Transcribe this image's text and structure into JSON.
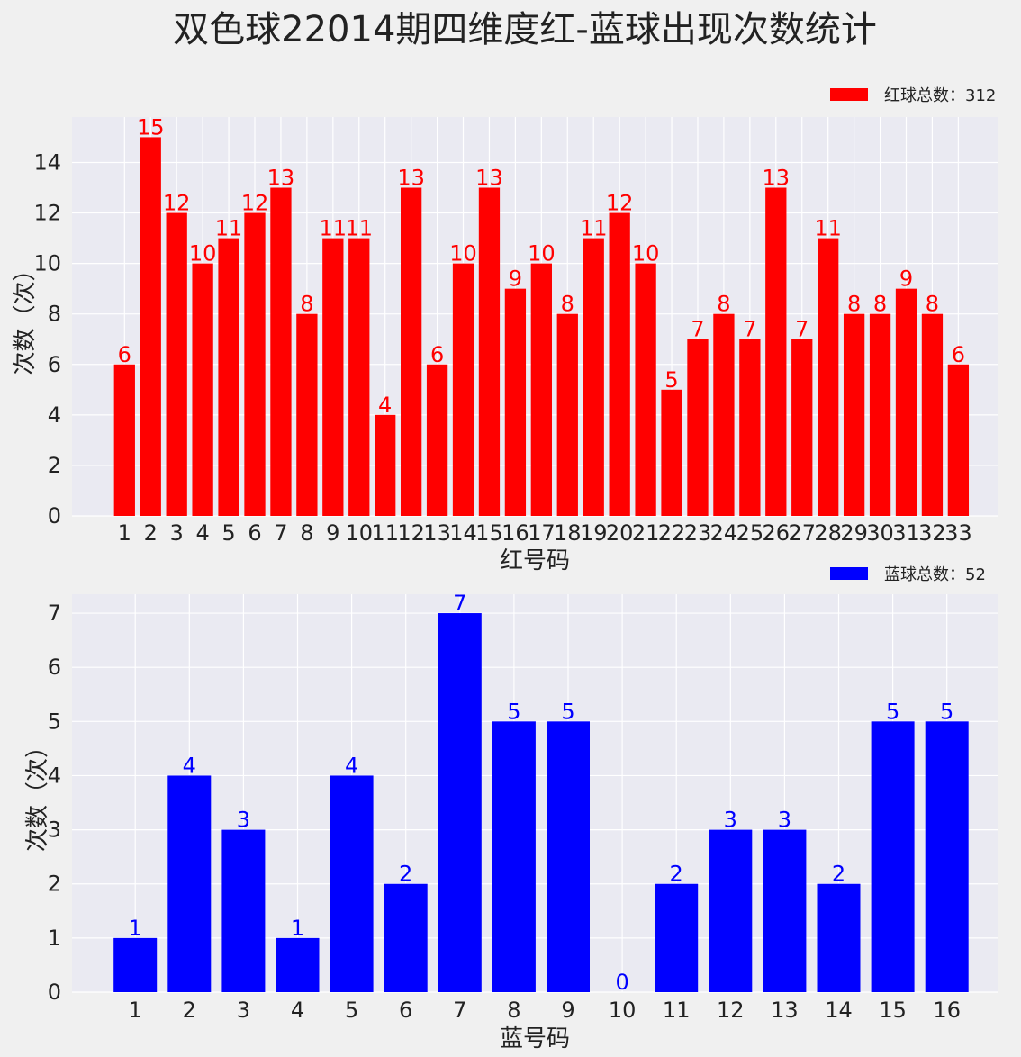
{
  "title": "双色球22014期四维度红-蓝球出现次数统计",
  "chart_data": [
    {
      "type": "bar",
      "color": "#ff0000",
      "categories": [
        "1",
        "2",
        "3",
        "4",
        "5",
        "6",
        "7",
        "8",
        "9",
        "10",
        "11",
        "12",
        "13",
        "14",
        "15",
        "16",
        "17",
        "18",
        "19",
        "20",
        "21",
        "22",
        "23",
        "24",
        "25",
        "26",
        "27",
        "28",
        "29",
        "30",
        "31",
        "32",
        "33"
      ],
      "values": [
        6,
        15,
        12,
        10,
        11,
        12,
        13,
        8,
        11,
        11,
        4,
        13,
        6,
        10,
        13,
        9,
        10,
        8,
        11,
        12,
        10,
        5,
        7,
        8,
        7,
        13,
        7,
        11,
        8,
        8,
        9,
        8,
        6
      ],
      "xlabel": "红号码",
      "ylabel": "次数（次）",
      "ylim": [
        0,
        15.8
      ],
      "yticks": [
        0,
        2,
        4,
        6,
        8,
        10,
        12,
        14
      ],
      "legend": {
        "label": "红球总数：312",
        "position": "top-right"
      },
      "grid": true
    },
    {
      "type": "bar",
      "color": "#0000ff",
      "categories": [
        "1",
        "2",
        "3",
        "4",
        "5",
        "6",
        "7",
        "8",
        "9",
        "10",
        "11",
        "12",
        "13",
        "14",
        "15",
        "16"
      ],
      "values": [
        1,
        4,
        3,
        1,
        4,
        2,
        7,
        5,
        5,
        0,
        2,
        3,
        3,
        2,
        5,
        5
      ],
      "xlabel": "蓝号码",
      "ylabel": "次数（次）",
      "ylim": [
        0,
        7.35
      ],
      "yticks": [
        0,
        1,
        2,
        3,
        4,
        5,
        6,
        7
      ],
      "legend": {
        "label": "蓝球总数：52",
        "position": "top-right"
      },
      "grid": true
    }
  ]
}
